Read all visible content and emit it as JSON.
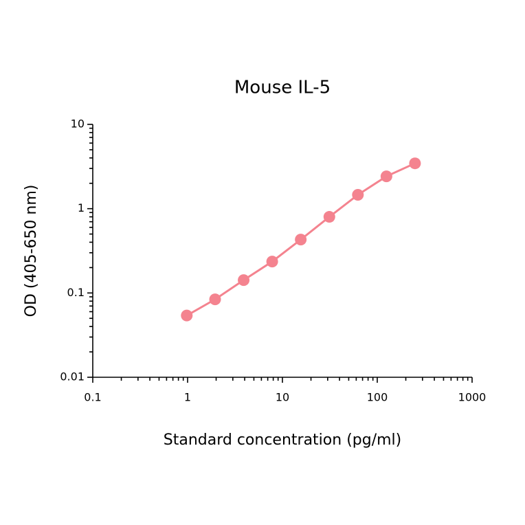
{
  "chart_data": {
    "type": "line",
    "title": "Mouse IL-5",
    "x_label": "Standard concentration (pg/ml)",
    "y_label": "OD (405-650 nm)",
    "x_scale": "log",
    "y_scale": "log",
    "xlim": [
      0.1,
      1000
    ],
    "ylim": [
      0.01,
      10
    ],
    "xticks": [
      0.1,
      1,
      10,
      100,
      1000
    ],
    "yticks": [
      0.01,
      0.1,
      1,
      10
    ],
    "xminorticks": [
      0.2,
      0.3,
      0.4,
      0.5,
      0.6,
      0.7,
      0.8,
      0.9,
      2,
      3,
      4,
      5,
      6,
      7,
      8,
      9,
      20,
      30,
      40,
      50,
      60,
      70,
      80,
      90,
      200,
      300,
      400,
      500,
      600,
      700,
      800,
      900
    ],
    "yminorticks": [
      0.02,
      0.03,
      0.04,
      0.05,
      0.06,
      0.07,
      0.08,
      0.09,
      0.2,
      0.3,
      0.4,
      0.5,
      0.6,
      0.7,
      0.8,
      0.9,
      2,
      3,
      4,
      5,
      6,
      7,
      8,
      9
    ],
    "series": [
      {
        "name": "Mouse IL-5",
        "color": "#f4838f",
        "x": [
          0.98,
          1.95,
          3.9,
          7.8,
          15.6,
          31.25,
          62.5,
          125,
          250
        ],
        "values": [
          0.054,
          0.084,
          0.142,
          0.236,
          0.43,
          0.8,
          1.46,
          2.42,
          3.45
        ]
      }
    ]
  }
}
